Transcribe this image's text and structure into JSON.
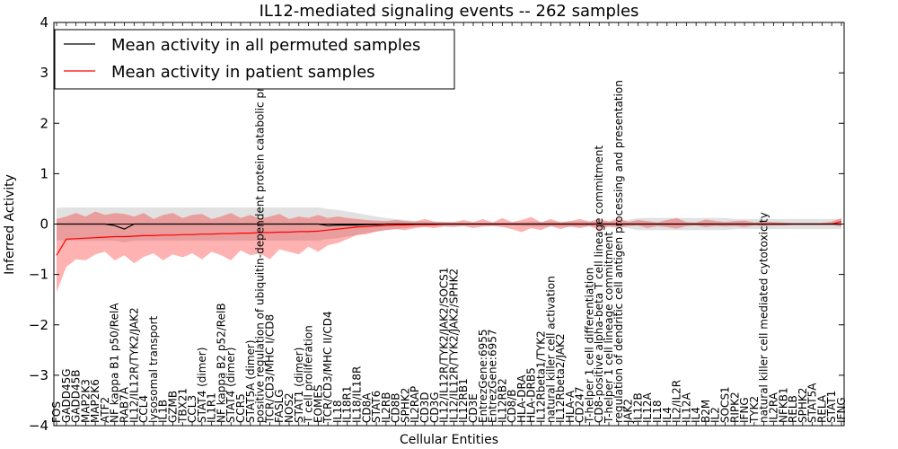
{
  "chart_data": {
    "type": "line",
    "title": "IL12-mediated signaling events -- 262 samples",
    "xlabel": "Cellular Entities",
    "ylabel": "Inferred Activity",
    "ylim": [
      -4,
      4
    ],
    "yticks": [
      -4,
      -3,
      -2,
      -1,
      0,
      1,
      2,
      3,
      4
    ],
    "legend_position": "top-left",
    "categories": [
      "FOS",
      "GADD45G",
      "GADD45B",
      "MAP2K3",
      "MAP2K6",
      "ATF2",
      "NF kappa B1 p50/RelA",
      "RAB7A",
      "IL12/IL12R/TYK2/JAK2",
      "CCL4",
      "lysosomal transport",
      "IL1B",
      "GZMB",
      "TBX21",
      "CCL3",
      "STAT4 (dimer)",
      "IL1R1",
      "NF kappa B2 p52/RelB",
      "STAT4 (dimer)",
      "CCR5",
      "STAT5A (dimer)",
      "positive regulation of ubiquitin-dependent protein catabolic process",
      "TCR/CD3/MHC I/CD8",
      "FASLG",
      "NOS2",
      "STAT1 (dimer)",
      "T cell proliferation",
      "EOMES",
      "TCR/CD3/MHC II/CD4",
      "IL18",
      "IL18R1",
      "IL18/IL18R",
      "CD8A",
      "STAT6",
      "IL2RB",
      "CD8B",
      "SPHK2",
      "IL2RAP",
      "CD3D",
      "CD3G",
      "IL12/IL12R/TYK2/JAK2/SOCS1",
      "IL12/IL12R/TYK2/JAK2/SPHK2",
      "IL12RB1",
      "CD3E",
      "EntrezGene:6955",
      "EntrezGene:6957",
      "IL12RB2",
      "CD8/B",
      "HLA-DRA",
      "HLA-DRB5",
      "IL12Rbeta1/TYK2",
      "natural killer cell activation",
      "IL12Rbeta2/JAK2",
      "HLA-A",
      "CD247",
      "T-helper 1 cell differentiation",
      "CD8-positive alpha-beta T cell lineage commitment",
      "T-helper 1 cell lineage commitment",
      "regulation of dendritic cell antigen processing and presentation",
      "JAK2",
      "IL12B",
      "IL12A",
      "IL18",
      "IL4",
      "IL2/IL2R",
      "IL12A",
      "IL4",
      "B2M",
      "IL2",
      "SOCS1",
      "RIPK2",
      "IFNG",
      "TYK2",
      "natural killer cell mediated cytotoxicity",
      "IL2RA",
      "NFKB1",
      "RELB",
      "SPHK2",
      "STAT5A",
      "RELA",
      "STAT1",
      "IFNG"
    ],
    "series": [
      {
        "name": "Mean activity in all permuted samples",
        "color": "#000000",
        "values": [
          0,
          0,
          0,
          0,
          0,
          0,
          -0.03,
          -0.1,
          0,
          0,
          0,
          0,
          0,
          0,
          0,
          0,
          0,
          0,
          0,
          0,
          0,
          0,
          0,
          0,
          0,
          0,
          0,
          0,
          -0.03,
          -0.02,
          -0.02,
          -0.02,
          -0.01,
          -0.01,
          0,
          0,
          0,
          0,
          0,
          0,
          0,
          0,
          0,
          0,
          0,
          0,
          0,
          0,
          0,
          0,
          0,
          0,
          0,
          0,
          0,
          0,
          0,
          0,
          0,
          0,
          0,
          0,
          0,
          0,
          0,
          0,
          0,
          0,
          0,
          0,
          0,
          0,
          0,
          0,
          0,
          0,
          0,
          0,
          0,
          0,
          0,
          0
        ],
        "band_upper": [
          0.32,
          0.33,
          0.33,
          0.33,
          0.33,
          0.33,
          0.33,
          0.33,
          0.33,
          0.33,
          0.33,
          0.33,
          0.33,
          0.33,
          0.33,
          0.33,
          0.33,
          0.33,
          0.33,
          0.33,
          0.33,
          0.33,
          0.33,
          0.33,
          0.33,
          0.33,
          0.33,
          0.33,
          0.3,
          0.28,
          0.25,
          0.22,
          0.18,
          0.15,
          0.12,
          0.1,
          0.08,
          0.06,
          0.05,
          0.04,
          0.04,
          0.03,
          0.03,
          0.03,
          0.03,
          0.03,
          0.03,
          0.03,
          0.04,
          0.05,
          0.05,
          0.05,
          0.05,
          0.05,
          0.05,
          0.05,
          0.05,
          0.05,
          0.05,
          0.08,
          0.12,
          0.12,
          0.12,
          0.12,
          0.12,
          0.12,
          0.12,
          0.12,
          0.12,
          0.12,
          0.1,
          0.1,
          0.1,
          0.1,
          0.1,
          0.1,
          0.1,
          0.1,
          0.1,
          0.1,
          0.1,
          0.1
        ],
        "band_lower": [
          -0.32,
          -0.33,
          -0.33,
          -0.33,
          -0.33,
          -0.33,
          -0.33,
          -0.36,
          -0.33,
          -0.33,
          -0.33,
          -0.33,
          -0.33,
          -0.33,
          -0.33,
          -0.33,
          -0.33,
          -0.33,
          -0.33,
          -0.33,
          -0.33,
          -0.33,
          -0.33,
          -0.33,
          -0.33,
          -0.33,
          -0.33,
          -0.33,
          -0.3,
          -0.28,
          -0.25,
          -0.22,
          -0.18,
          -0.15,
          -0.12,
          -0.1,
          -0.08,
          -0.06,
          -0.05,
          -0.04,
          -0.04,
          -0.03,
          -0.03,
          -0.03,
          -0.03,
          -0.03,
          -0.03,
          -0.03,
          -0.04,
          -0.05,
          -0.05,
          -0.05,
          -0.05,
          -0.05,
          -0.05,
          -0.05,
          -0.05,
          -0.05,
          -0.05,
          -0.08,
          -0.12,
          -0.12,
          -0.12,
          -0.12,
          -0.12,
          -0.12,
          -0.12,
          -0.12,
          -0.12,
          -0.12,
          -0.1,
          -0.1,
          -0.1,
          -0.1,
          -0.1,
          -0.1,
          -0.1,
          -0.1,
          -0.1,
          -0.1,
          -0.1,
          -0.1
        ]
      },
      {
        "name": "Mean activity in patient samples",
        "color": "#ff0000",
        "values": [
          -0.62,
          -0.3,
          -0.29,
          -0.28,
          -0.27,
          -0.26,
          -0.25,
          -0.25,
          -0.24,
          -0.23,
          -0.23,
          -0.22,
          -0.22,
          -0.21,
          -0.21,
          -0.2,
          -0.2,
          -0.19,
          -0.19,
          -0.18,
          -0.18,
          -0.17,
          -0.17,
          -0.16,
          -0.16,
          -0.15,
          -0.15,
          -0.14,
          -0.12,
          -0.1,
          -0.08,
          -0.06,
          -0.05,
          -0.04,
          -0.03,
          -0.02,
          -0.02,
          -0.01,
          -0.01,
          -0.01,
          0,
          0,
          0,
          0,
          0,
          0,
          0,
          0,
          0,
          0,
          0,
          0,
          0,
          0,
          0,
          0,
          0,
          0,
          0,
          0,
          0,
          0,
          0,
          0,
          0,
          0,
          0,
          0,
          0,
          0,
          0,
          0,
          0,
          0,
          0,
          0,
          0,
          0,
          0,
          0,
          0,
          0.05
        ],
        "band_upper": [
          0.1,
          0.15,
          0.22,
          0.15,
          0.25,
          0.18,
          0.22,
          0.2,
          0.15,
          0.22,
          0.1,
          0.18,
          0.22,
          0.12,
          0.18,
          0.2,
          0.1,
          0.15,
          0.22,
          0.12,
          0.18,
          0.1,
          0.15,
          0.2,
          0.1,
          0.15,
          0.12,
          0.18,
          0.12,
          0.15,
          0.12,
          0.1,
          0.08,
          0.07,
          0.06,
          0.08,
          0.06,
          0.05,
          0.1,
          0.05,
          0.04,
          0.04,
          0.08,
          0.04,
          0.1,
          0.03,
          0.12,
          0.04,
          0.08,
          0.14,
          0.03,
          0.1,
          0.03,
          0.06,
          0.1,
          0.05,
          0.1,
          0.05,
          0.12,
          0.04,
          0.08,
          0.06,
          0.03,
          0.08,
          0.12,
          0.04,
          0.03,
          0.09,
          0.06,
          0.04,
          0.06,
          0.07,
          0.03,
          0.05,
          0.04,
          0.03,
          0.02,
          0.02,
          0.02,
          0.02,
          0.05,
          0.12
        ],
        "band_lower": [
          -1.35,
          -0.85,
          -0.7,
          -0.72,
          -0.6,
          -0.55,
          -0.72,
          -0.62,
          -0.78,
          -0.65,
          -0.58,
          -0.72,
          -0.6,
          -0.66,
          -0.58,
          -0.7,
          -0.55,
          -0.62,
          -0.72,
          -0.52,
          -0.62,
          -0.58,
          -0.7,
          -0.5,
          -0.55,
          -0.6,
          -0.45,
          -0.55,
          -0.42,
          -0.38,
          -0.3,
          -0.22,
          -0.2,
          -0.15,
          -0.12,
          -0.1,
          -0.12,
          -0.08,
          -0.06,
          -0.08,
          -0.05,
          -0.06,
          -0.04,
          -0.08,
          -0.05,
          -0.04,
          -0.06,
          -0.1,
          -0.16,
          -0.08,
          -0.12,
          -0.04,
          -0.1,
          -0.05,
          -0.08,
          -0.04,
          -0.12,
          -0.05,
          -0.08,
          -0.04,
          -0.03,
          -0.08,
          -0.04,
          -0.06,
          -0.09,
          -0.04,
          -0.03,
          -0.06,
          -0.04,
          -0.05,
          -0.04,
          -0.06,
          -0.03,
          -0.04,
          -0.03,
          -0.03,
          -0.02,
          -0.02,
          -0.02,
          -0.02,
          -0.02,
          -0.05
        ]
      }
    ]
  }
}
